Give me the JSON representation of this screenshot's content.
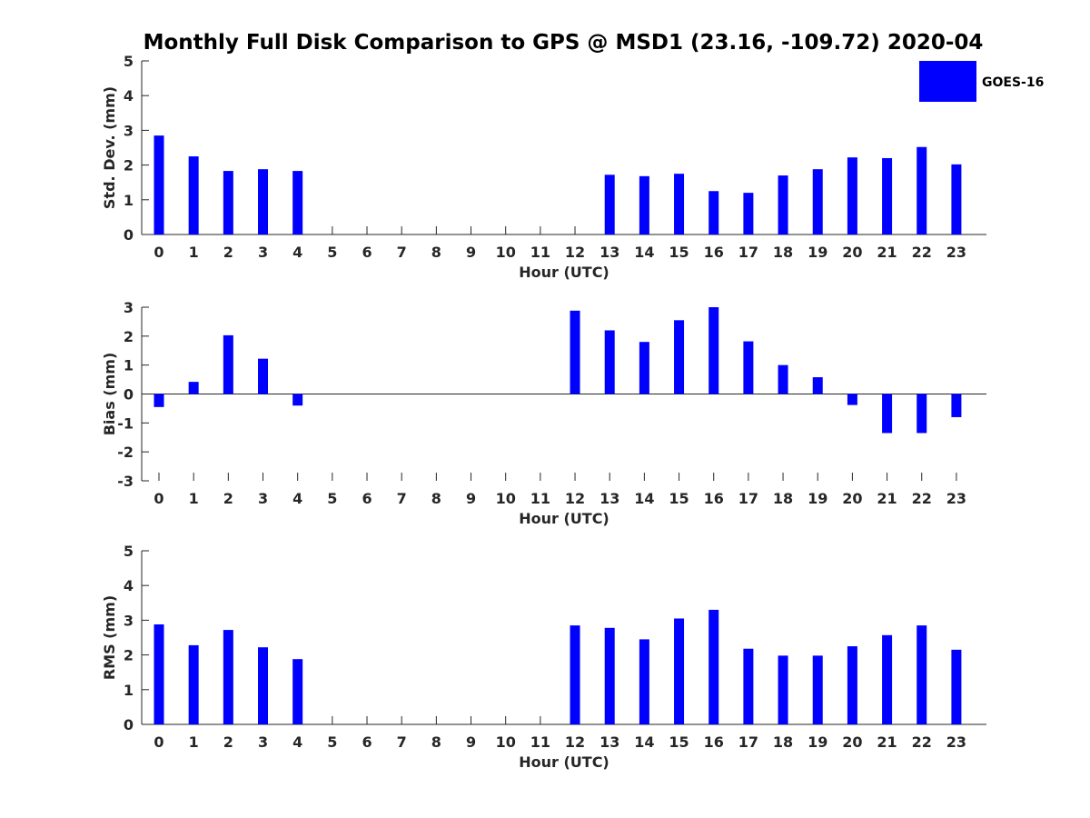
{
  "title": "Monthly Full Disk Comparison to GPS @ MSD1 (23.16, -109.72) 2020-04",
  "legend": {
    "label": "GOES-16",
    "color": "#0000ff"
  },
  "chart_data": [
    {
      "type": "bar",
      "ylabel": "Std. Dev. (mm)",
      "xlabel": "Hour (UTC)",
      "ylim": [
        0,
        5
      ],
      "yticks": [
        "0",
        "1",
        "2",
        "3",
        "4",
        "5"
      ],
      "categories": [
        "0",
        "1",
        "2",
        "3",
        "4",
        "5",
        "6",
        "7",
        "8",
        "9",
        "10",
        "11",
        "12",
        "13",
        "14",
        "15",
        "16",
        "17",
        "18",
        "19",
        "20",
        "21",
        "22",
        "23"
      ],
      "series": [
        {
          "name": "GOES-16",
          "values": [
            2.85,
            2.25,
            1.83,
            1.88,
            1.83,
            null,
            null,
            null,
            null,
            null,
            null,
            null,
            null,
            1.72,
            1.68,
            1.75,
            1.25,
            1.2,
            1.7,
            1.88,
            2.22,
            2.2,
            2.52,
            2.02
          ]
        }
      ]
    },
    {
      "type": "bar",
      "ylabel": "Bias (mm)",
      "xlabel": "Hour (UTC)",
      "ylim": [
        -3,
        3
      ],
      "yticks": [
        "-3",
        "-2",
        "-1",
        "0",
        "1",
        "2",
        "3"
      ],
      "categories": [
        "0",
        "1",
        "2",
        "3",
        "4",
        "5",
        "6",
        "7",
        "8",
        "9",
        "10",
        "11",
        "12",
        "13",
        "14",
        "15",
        "16",
        "17",
        "18",
        "19",
        "20",
        "21",
        "22",
        "23"
      ],
      "series": [
        {
          "name": "GOES-16",
          "values": [
            -0.45,
            0.42,
            2.03,
            1.22,
            -0.4,
            null,
            null,
            null,
            null,
            null,
            null,
            null,
            2.88,
            2.2,
            1.8,
            2.55,
            3.0,
            1.82,
            1.0,
            0.58,
            -0.38,
            -1.35,
            -1.35,
            -0.8
          ]
        }
      ]
    },
    {
      "type": "bar",
      "ylabel": "RMS (mm)",
      "xlabel": "Hour (UTC)",
      "ylim": [
        0,
        5
      ],
      "yticks": [
        "0",
        "1",
        "2",
        "3",
        "4",
        "5"
      ],
      "categories": [
        "0",
        "1",
        "2",
        "3",
        "4",
        "5",
        "6",
        "7",
        "8",
        "9",
        "10",
        "11",
        "12",
        "13",
        "14",
        "15",
        "16",
        "17",
        "18",
        "19",
        "20",
        "21",
        "22",
        "23"
      ],
      "series": [
        {
          "name": "GOES-16",
          "values": [
            2.88,
            2.28,
            2.72,
            2.22,
            1.88,
            null,
            null,
            null,
            null,
            null,
            null,
            null,
            2.85,
            2.78,
            2.45,
            3.05,
            3.3,
            2.18,
            1.98,
            1.98,
            2.25,
            2.57,
            2.85,
            2.15
          ]
        }
      ]
    }
  ]
}
